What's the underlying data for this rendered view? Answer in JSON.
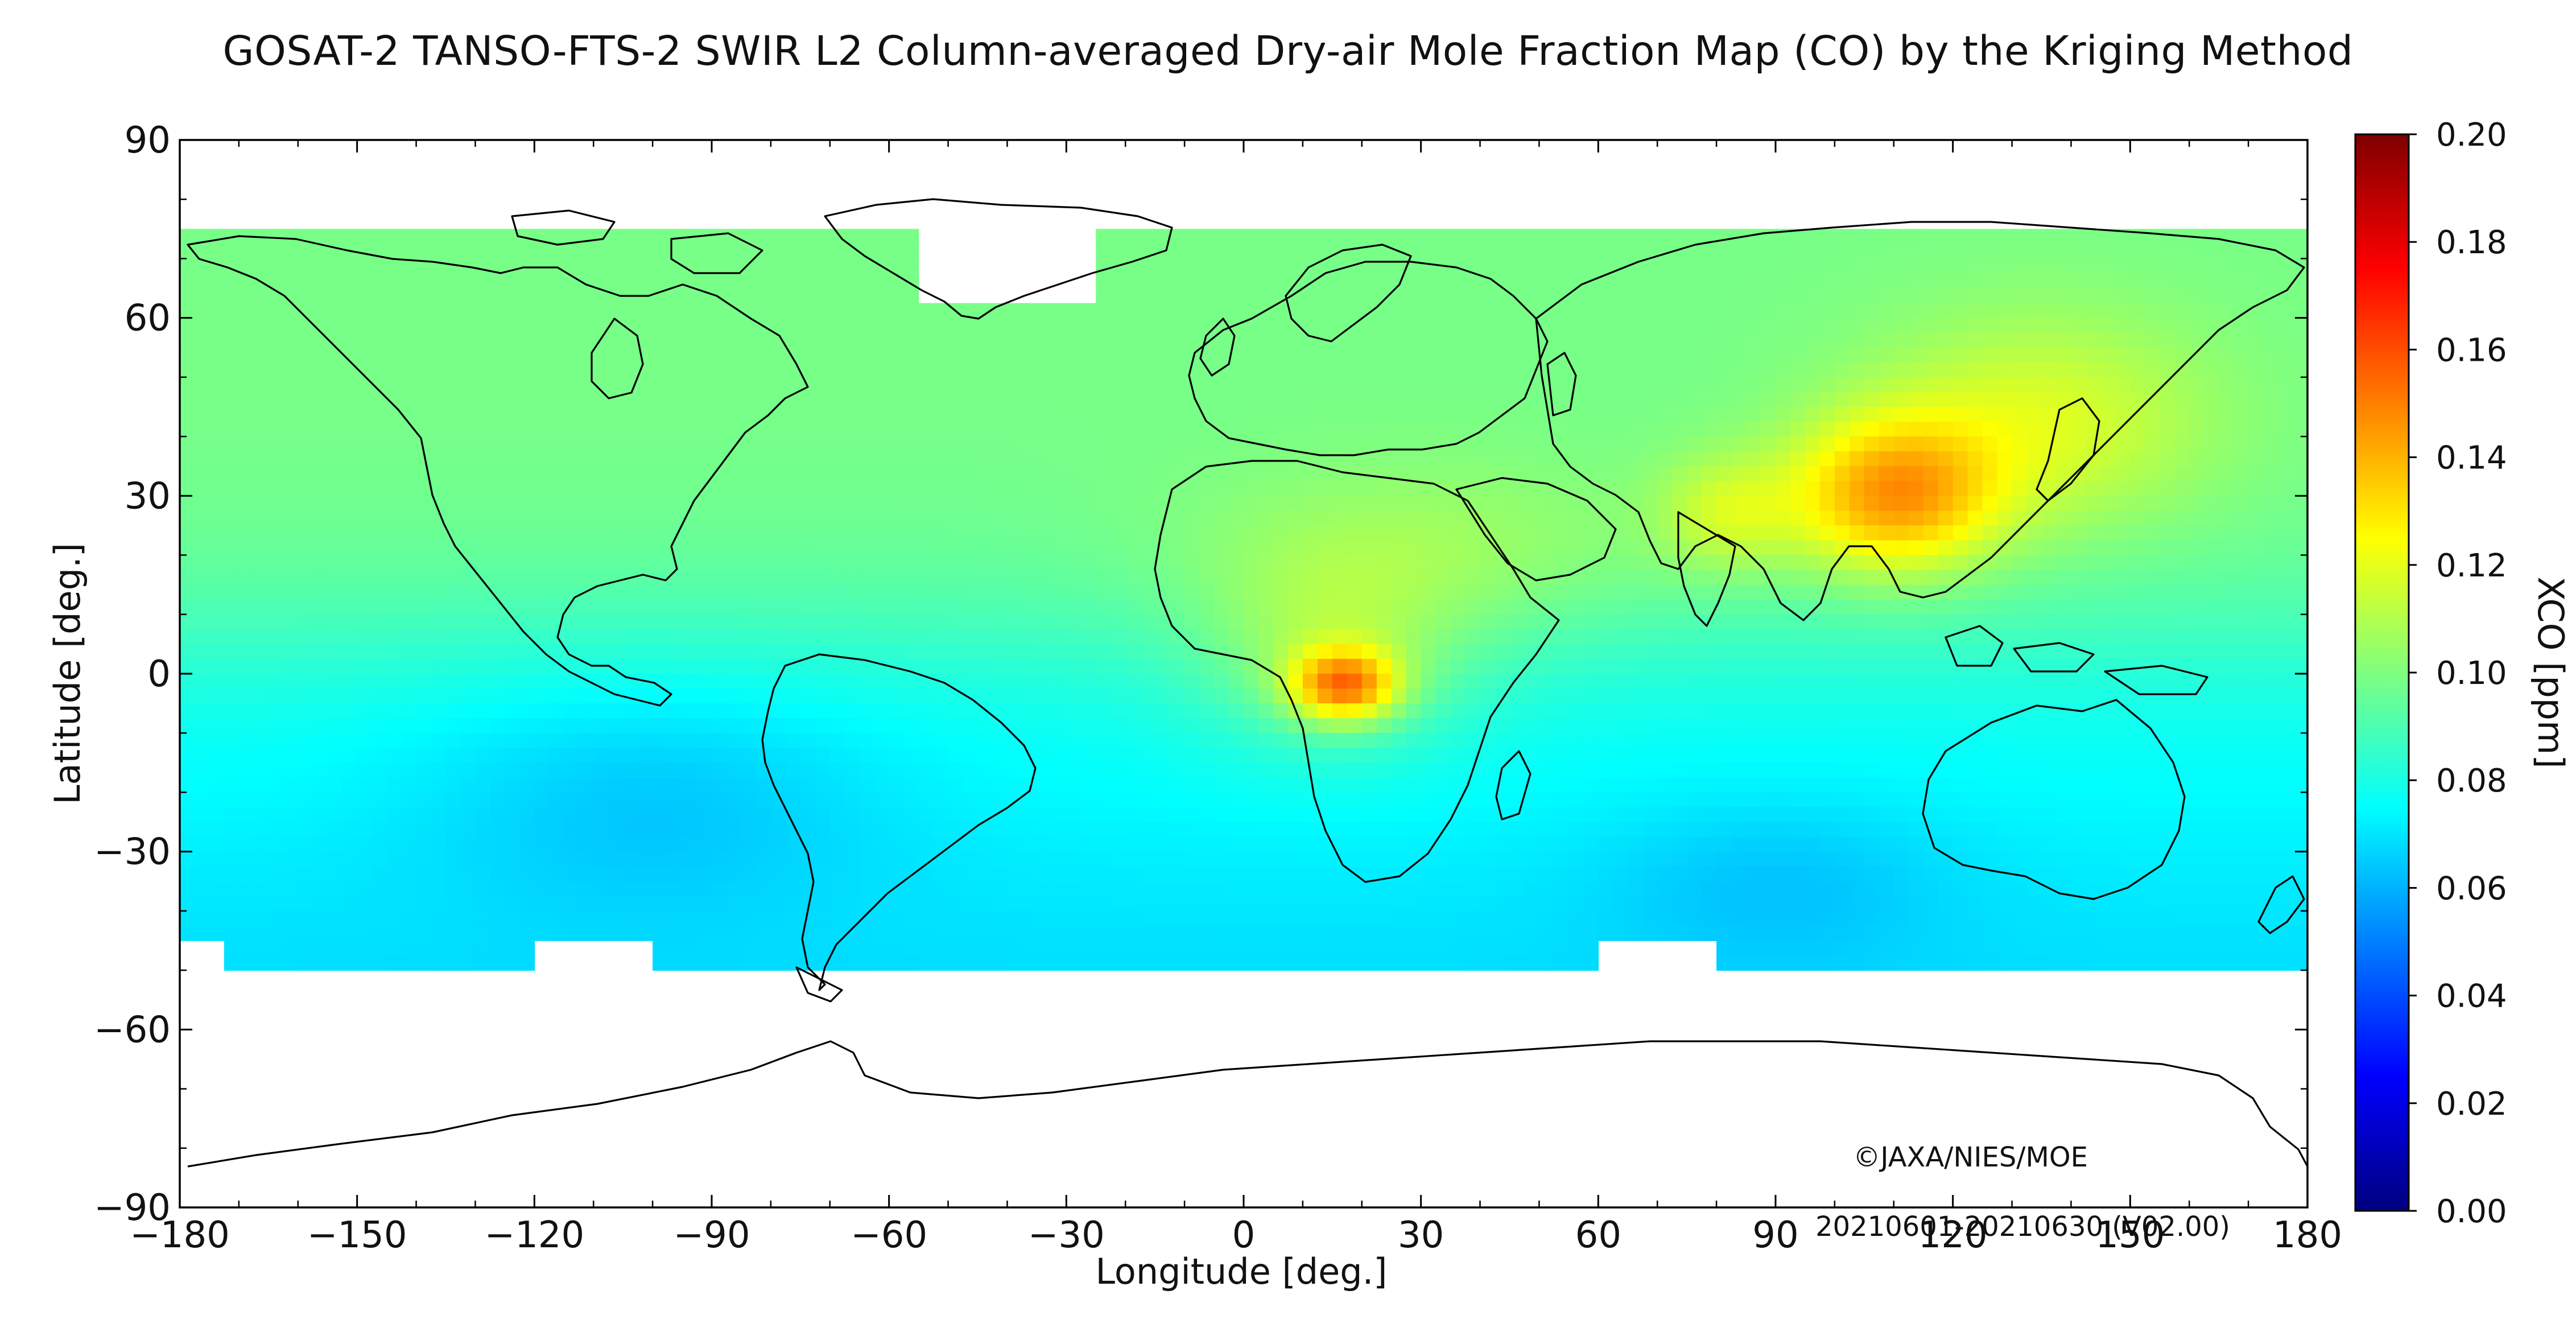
{
  "title": "GOSAT-2 TANSO-FTS-2 SWIR L2 Column-averaged Dry-air Mole Fraction Map (CO) by the Kriging Method",
  "map": {
    "lon_ticks": [
      "−180",
      "−150",
      "−120",
      "−90",
      "−60",
      "−30",
      "0",
      "30",
      "60",
      "90",
      "120",
      "150",
      "180"
    ],
    "lon_values": [
      -180,
      -150,
      -120,
      -90,
      -60,
      -30,
      0,
      30,
      60,
      90,
      120,
      150,
      180
    ],
    "lat_ticks": [
      "90",
      "60",
      "30",
      "0",
      "−30",
      "−60",
      "−90"
    ],
    "lat_values": [
      90,
      60,
      30,
      0,
      -30,
      -60,
      -90
    ],
    "xlabel": "Longitude [deg.]",
    "ylabel": "Latitude [deg.]",
    "lon_range": [
      -180,
      180
    ],
    "lat_range": [
      -90,
      90
    ],
    "data_lat_range": [
      -50,
      75
    ]
  },
  "colorbar": {
    "label": "XCO [ppm]",
    "ticks": [
      "0.20",
      "0.18",
      "0.16",
      "0.14",
      "0.12",
      "0.10",
      "0.08",
      "0.06",
      "0.04",
      "0.02",
      "0.00"
    ],
    "values": [
      0.2,
      0.18,
      0.16,
      0.14,
      0.12,
      0.1,
      0.08,
      0.06,
      0.04,
      0.02,
      0.0
    ],
    "range": [
      0.0,
      0.2
    ],
    "colormap": "jet",
    "colors": [
      "#00007f",
      "#0000ff",
      "#007fff",
      "#00ffff",
      "#7fff7f",
      "#ffff00",
      "#ff7f00",
      "#ff0000",
      "#7f0000"
    ]
  },
  "copyright": "©JAXA/NIES/MOE",
  "period": "20210601-20210630 (V02.00)"
}
